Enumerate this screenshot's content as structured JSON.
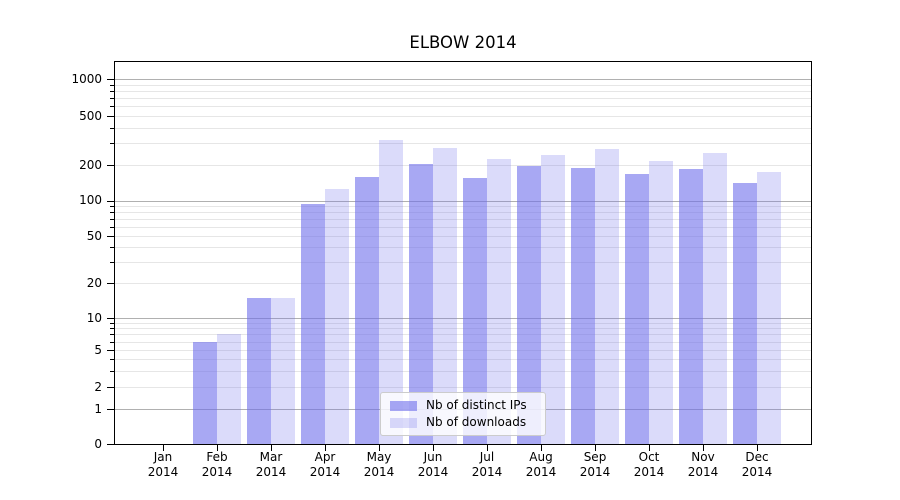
{
  "chart_data": {
    "type": "bar",
    "title": "ELBOW 2014",
    "categories": [
      "Jan",
      "Feb",
      "Mar",
      "Apr",
      "May",
      "Jun",
      "Jul",
      "Aug",
      "Sep",
      "Oct",
      "Nov",
      "Dec"
    ],
    "year": "2014",
    "series": [
      {
        "name": "Nb of distinct IPs",
        "color": "rgba(110,110,235,0.6)",
        "values": [
          0,
          6,
          15,
          94,
          158,
          205,
          155,
          198,
          190,
          167,
          184,
          140
        ]
      },
      {
        "name": "Nb of downloads",
        "color": "rgba(110,110,235,0.25)",
        "values": [
          0,
          7,
          15,
          125,
          318,
          276,
          222,
          242,
          268,
          215,
          248,
          176
        ]
      }
    ],
    "yticks": [
      0,
      1,
      2,
      5,
      10,
      20,
      50,
      100,
      200,
      500,
      1000
    ],
    "yscale": "symlog",
    "ylim": [
      0,
      1500
    ],
    "xlabel": "",
    "ylabel": "",
    "grid": true,
    "legend_position": "lower center"
  }
}
